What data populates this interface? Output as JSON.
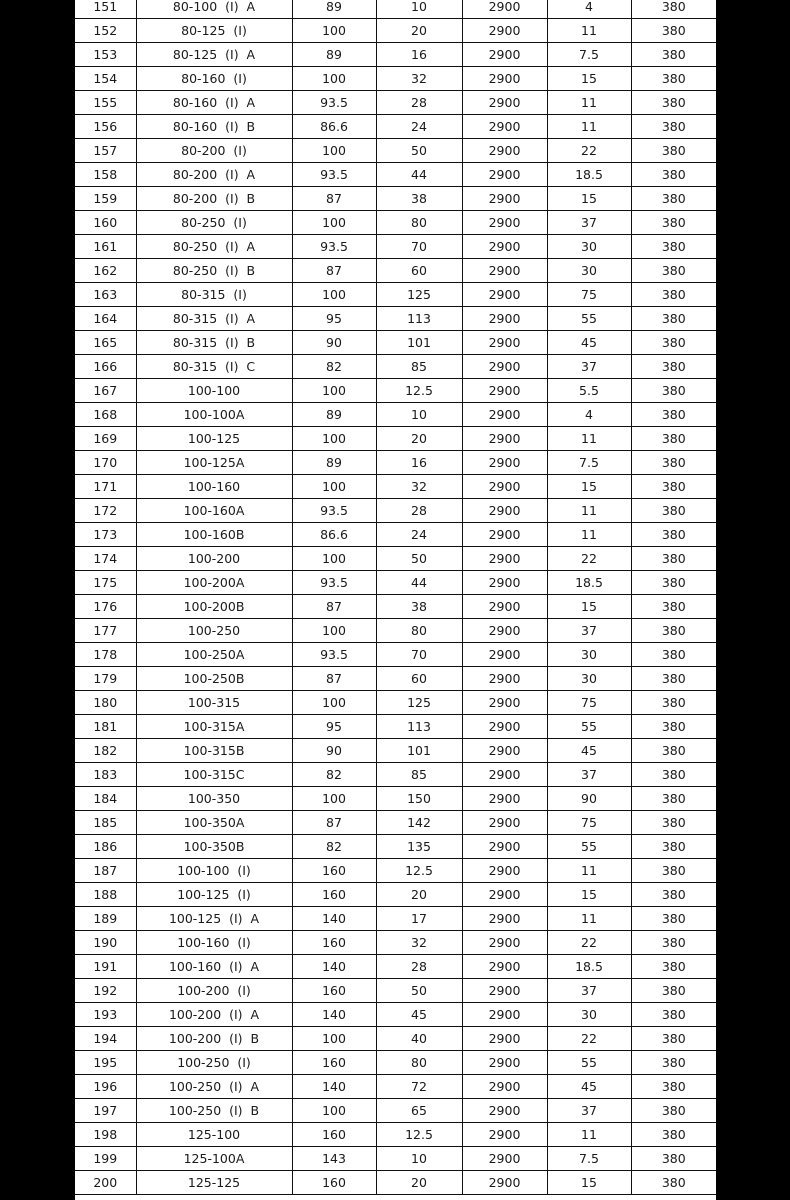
{
  "table": {
    "rows": [
      [
        "151",
        "80-100  (I)  A",
        "89",
        "10",
        "2900",
        "4",
        "380"
      ],
      [
        "152",
        "80-125  (I)",
        "100",
        "20",
        "2900",
        "11",
        "380"
      ],
      [
        "153",
        "80-125  (I)  A",
        "89",
        "16",
        "2900",
        "7.5",
        "380"
      ],
      [
        "154",
        "80-160  (I)",
        "100",
        "32",
        "2900",
        "15",
        "380"
      ],
      [
        "155",
        "80-160  (I)  A",
        "93.5",
        "28",
        "2900",
        "11",
        "380"
      ],
      [
        "156",
        "80-160  (I)  B",
        "86.6",
        "24",
        "2900",
        "11",
        "380"
      ],
      [
        "157",
        "80-200  (I)",
        "100",
        "50",
        "2900",
        "22",
        "380"
      ],
      [
        "158",
        "80-200  (I)  A",
        "93.5",
        "44",
        "2900",
        "18.5",
        "380"
      ],
      [
        "159",
        "80-200  (I)  B",
        "87",
        "38",
        "2900",
        "15",
        "380"
      ],
      [
        "160",
        "80-250  (I)",
        "100",
        "80",
        "2900",
        "37",
        "380"
      ],
      [
        "161",
        "80-250  (I)  A",
        "93.5",
        "70",
        "2900",
        "30",
        "380"
      ],
      [
        "162",
        "80-250  (I)  B",
        "87",
        "60",
        "2900",
        "30",
        "380"
      ],
      [
        "163",
        "80-315  (I)",
        "100",
        "125",
        "2900",
        "75",
        "380"
      ],
      [
        "164",
        "80-315  (I)  A",
        "95",
        "113",
        "2900",
        "55",
        "380"
      ],
      [
        "165",
        "80-315  (I)  B",
        "90",
        "101",
        "2900",
        "45",
        "380"
      ],
      [
        "166",
        "80-315  (I)  C",
        "82",
        "85",
        "2900",
        "37",
        "380"
      ],
      [
        "167",
        "100-100",
        "100",
        "12.5",
        "2900",
        "5.5",
        "380"
      ],
      [
        "168",
        "100-100A",
        "89",
        "10",
        "2900",
        "4",
        "380"
      ],
      [
        "169",
        "100-125",
        "100",
        "20",
        "2900",
        "11",
        "380"
      ],
      [
        "170",
        "100-125A",
        "89",
        "16",
        "2900",
        "7.5",
        "380"
      ],
      [
        "171",
        "100-160",
        "100",
        "32",
        "2900",
        "15",
        "380"
      ],
      [
        "172",
        "100-160A",
        "93.5",
        "28",
        "2900",
        "11",
        "380"
      ],
      [
        "173",
        "100-160B",
        "86.6",
        "24",
        "2900",
        "11",
        "380"
      ],
      [
        "174",
        "100-200",
        "100",
        "50",
        "2900",
        "22",
        "380"
      ],
      [
        "175",
        "100-200A",
        "93.5",
        "44",
        "2900",
        "18.5",
        "380"
      ],
      [
        "176",
        "100-200B",
        "87",
        "38",
        "2900",
        "15",
        "380"
      ],
      [
        "177",
        "100-250",
        "100",
        "80",
        "2900",
        "37",
        "380"
      ],
      [
        "178",
        "100-250A",
        "93.5",
        "70",
        "2900",
        "30",
        "380"
      ],
      [
        "179",
        "100-250B",
        "87",
        "60",
        "2900",
        "30",
        "380"
      ],
      [
        "180",
        "100-315",
        "100",
        "125",
        "2900",
        "75",
        "380"
      ],
      [
        "181",
        "100-315A",
        "95",
        "113",
        "2900",
        "55",
        "380"
      ],
      [
        "182",
        "100-315B",
        "90",
        "101",
        "2900",
        "45",
        "380"
      ],
      [
        "183",
        "100-315C",
        "82",
        "85",
        "2900",
        "37",
        "380"
      ],
      [
        "184",
        "100-350",
        "100",
        "150",
        "2900",
        "90",
        "380"
      ],
      [
        "185",
        "100-350A",
        "87",
        "142",
        "2900",
        "75",
        "380"
      ],
      [
        "186",
        "100-350B",
        "82",
        "135",
        "2900",
        "55",
        "380"
      ],
      [
        "187",
        "100-100  (I)",
        "160",
        "12.5",
        "2900",
        "11",
        "380"
      ],
      [
        "188",
        "100-125  (I)",
        "160",
        "20",
        "2900",
        "15",
        "380"
      ],
      [
        "189",
        "100-125  (I)  A",
        "140",
        "17",
        "2900",
        "11",
        "380"
      ],
      [
        "190",
        "100-160  (I)",
        "160",
        "32",
        "2900",
        "22",
        "380"
      ],
      [
        "191",
        "100-160  (I)  A",
        "140",
        "28",
        "2900",
        "18.5",
        "380"
      ],
      [
        "192",
        "100-200  (I)",
        "160",
        "50",
        "2900",
        "37",
        "380"
      ],
      [
        "193",
        "100-200  (I)  A",
        "140",
        "45",
        "2900",
        "30",
        "380"
      ],
      [
        "194",
        "100-200  (I)  B",
        "100",
        "40",
        "2900",
        "22",
        "380"
      ],
      [
        "195",
        "100-250  (I)",
        "160",
        "80",
        "2900",
        "55",
        "380"
      ],
      [
        "196",
        "100-250  (I)  A",
        "140",
        "72",
        "2900",
        "45",
        "380"
      ],
      [
        "197",
        "100-250  (I)  B",
        "100",
        "65",
        "2900",
        "37",
        "380"
      ],
      [
        "198",
        "125-100",
        "160",
        "12.5",
        "2900",
        "11",
        "380"
      ],
      [
        "199",
        "125-100A",
        "143",
        "10",
        "2900",
        "7.5",
        "380"
      ],
      [
        "200",
        "125-125",
        "160",
        "20",
        "2900",
        "15",
        "380"
      ]
    ]
  }
}
